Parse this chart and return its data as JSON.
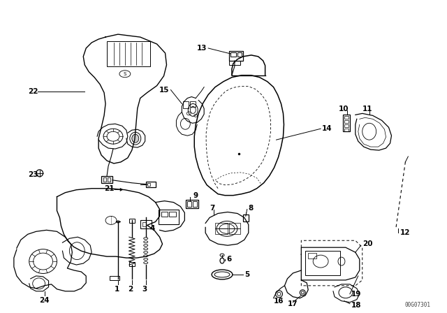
{
  "background_color": "#ffffff",
  "line_color": "#000000",
  "watermark": "00G07301",
  "figsize": [
    6.4,
    4.48
  ],
  "dpi": 100
}
